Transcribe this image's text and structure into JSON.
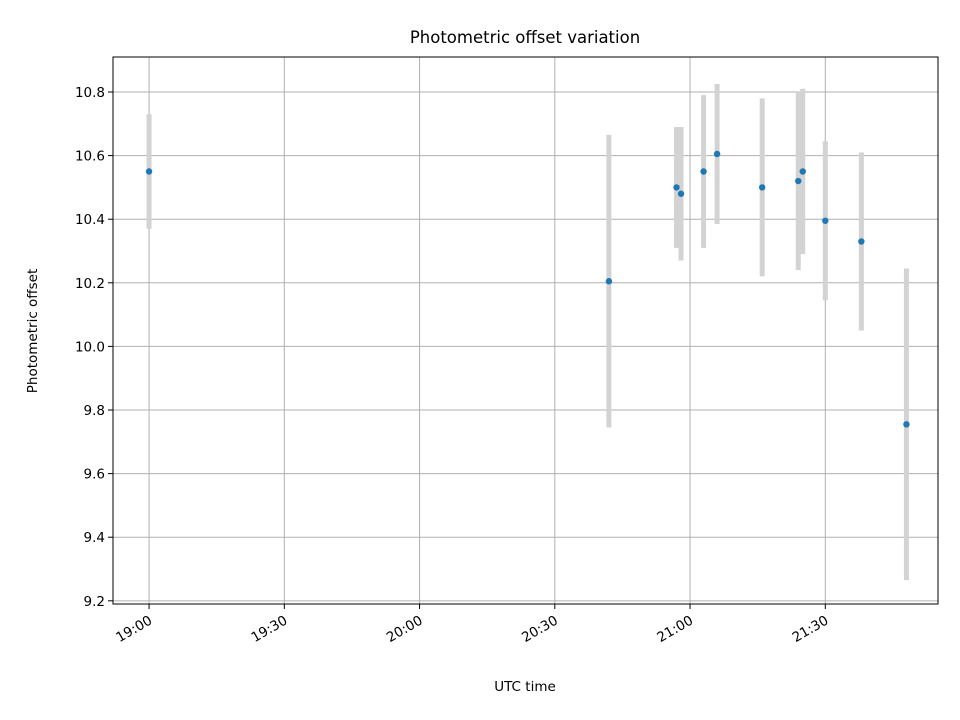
{
  "chart_data": {
    "type": "scatter",
    "title": "Photometric offset variation",
    "xlabel": "UTC time",
    "ylabel": "Photometric offset",
    "x_ticks": [
      "19:00",
      "19:30",
      "20:00",
      "20:30",
      "21:00",
      "21:30"
    ],
    "y_ticks": [
      "9.2",
      "9.4",
      "9.6",
      "9.8",
      "10.0",
      "10.2",
      "10.4",
      "10.6",
      "10.8"
    ],
    "xlim": [
      "18:52",
      "21:55"
    ],
    "ylim": [
      9.19,
      10.91
    ],
    "grid": true,
    "marker_color": "#1f77b4",
    "errorbar_color": "#d3d3d3",
    "points": [
      {
        "time": "19:00",
        "value": 10.55,
        "error": 0.18
      },
      {
        "time": "20:42",
        "value": 10.205,
        "error": 0.46
      },
      {
        "time": "20:57",
        "value": 10.5,
        "error": 0.19
      },
      {
        "time": "20:58",
        "value": 10.48,
        "error": 0.21
      },
      {
        "time": "21:03",
        "value": 10.55,
        "error": 0.24
      },
      {
        "time": "21:06",
        "value": 10.605,
        "error": 0.22
      },
      {
        "time": "21:16",
        "value": 10.5,
        "error": 0.28
      },
      {
        "time": "21:24",
        "value": 10.52,
        "error": 0.28
      },
      {
        "time": "21:25",
        "value": 10.55,
        "error": 0.26
      },
      {
        "time": "21:30",
        "value": 10.395,
        "error": 0.25
      },
      {
        "time": "21:38",
        "value": 10.33,
        "error": 0.28
      },
      {
        "time": "21:48",
        "value": 9.755,
        "error": 0.49
      }
    ]
  }
}
